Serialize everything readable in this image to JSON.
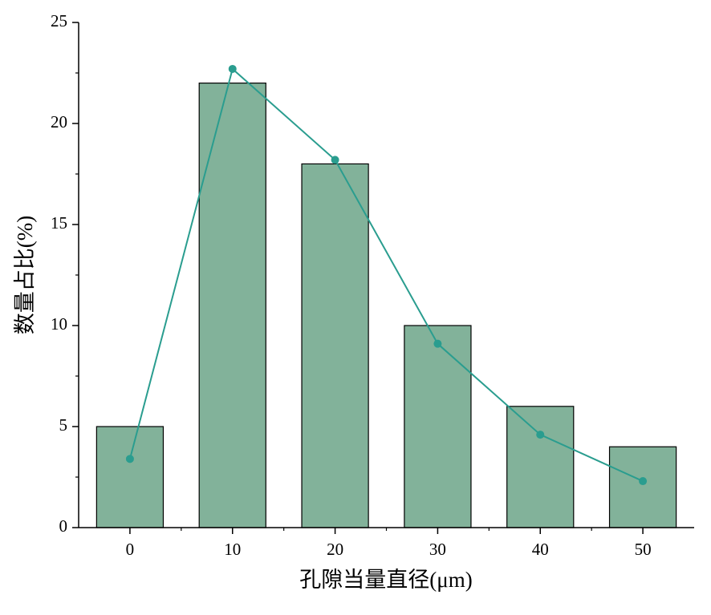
{
  "chart_data": {
    "type": "bar",
    "x_label": "孔隙当量直径(μm)",
    "y_label": "数量占比(%)",
    "x": [
      0,
      10,
      20,
      30,
      40,
      50
    ],
    "series": [
      {
        "type": "bar",
        "color": "#82b29a",
        "values": [
          5,
          22,
          18,
          10,
          6,
          4
        ]
      },
      {
        "type": "line",
        "color": "#2a9d8f",
        "values": [
          3.4,
          22.7,
          18.2,
          9.1,
          4.6,
          2.3
        ]
      }
    ],
    "xlim": [
      -5,
      55
    ],
    "xticks": [
      0,
      10,
      20,
      30,
      40,
      50
    ],
    "xminorticks": [
      5,
      15,
      25,
      35,
      45
    ],
    "ylim": [
      0,
      25
    ],
    "yticks": [
      0,
      5,
      10,
      15,
      20,
      25
    ],
    "yminorticks": [
      2.5,
      7.5,
      12.5,
      17.5,
      22.5
    ]
  }
}
